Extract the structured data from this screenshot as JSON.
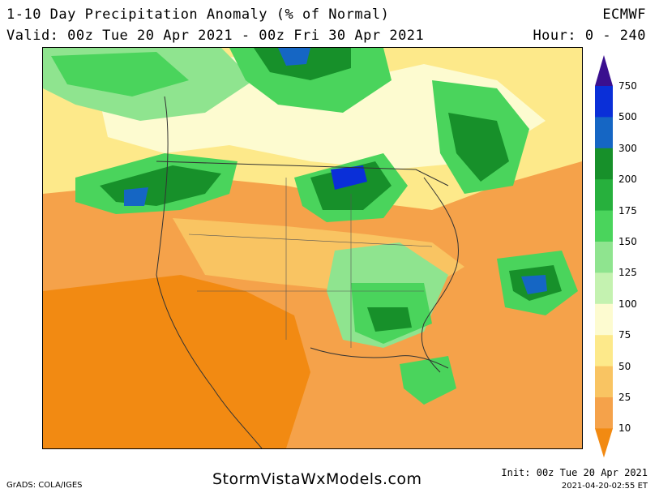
{
  "header": {
    "title": "1-10 Day Precipitation Anomaly (% of Normal)",
    "valid": "Valid: 00z Tue 20 Apr 2021 - 00z Fri 30 Apr 2021",
    "model": "ECMWF",
    "hours": "Hour: 0 - 240"
  },
  "legend": {
    "labels": [
      "750",
      "500",
      "300",
      "200",
      "175",
      "150",
      "125",
      "100",
      "75",
      "50",
      "25",
      "10"
    ],
    "colors": [
      "#3a0f8f",
      "#0a2fd8",
      "#1566c4",
      "#17902a",
      "#27b03d",
      "#4ad45c",
      "#8fe48f",
      "#c4f2b0",
      "#fdfbd0",
      "#fde98a",
      "#f9c462",
      "#f5a24a",
      "#f28a12"
    ]
  },
  "footer": {
    "grads": "GrADS: COLA/IGES",
    "site": "StormVistaWxModels.com",
    "init": "Init: 00z Tue 20 Apr 2021",
    "stamp": "2021-04-20-02:55 ET"
  }
}
